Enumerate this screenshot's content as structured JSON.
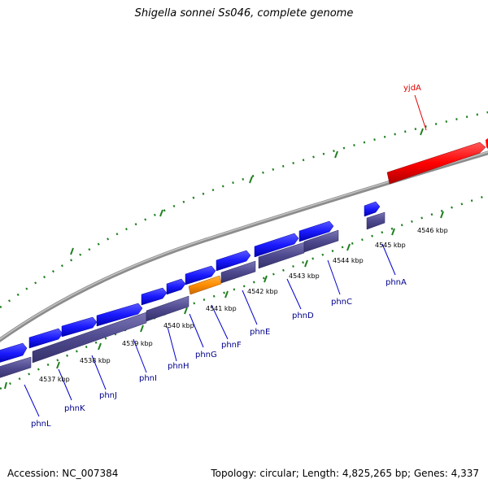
{
  "title": "Shigella sonnei Ss046, complete genome",
  "accession": "Accession: NC_007384",
  "summary": "Topology: circular; Length: 4,825,265 bp; Genes: 4,337",
  "colors": {
    "forward_gene": "#1a1aff",
    "reverse_gene": "#4f4a8f",
    "highlight_gene": "#ff8c00",
    "rna_gene": "#ff0000",
    "backbone": "#8c8c8c",
    "tick": "#1e7f1e",
    "label": "#00008b"
  },
  "ticks": [
    {
      "label": "4537 kbp"
    },
    {
      "label": "4538 kbp"
    },
    {
      "label": "4539 kbp"
    },
    {
      "label": "4540 kbp"
    },
    {
      "label": "4541 kbp"
    },
    {
      "label": "4542 kbp"
    },
    {
      "label": "4543 kbp"
    },
    {
      "label": "4544 kbp"
    },
    {
      "label": "4545 kbp"
    },
    {
      "label": "4546 kbp"
    }
  ],
  "genes": [
    {
      "name": "phnL"
    },
    {
      "name": "phnK"
    },
    {
      "name": "phnJ"
    },
    {
      "name": "phnI"
    },
    {
      "name": "phnH"
    },
    {
      "name": "phnG"
    },
    {
      "name": "phnF"
    },
    {
      "name": "phnE"
    },
    {
      "name": "phnD"
    },
    {
      "name": "phnC"
    },
    {
      "name": "phnA"
    },
    {
      "name": "yjdA"
    }
  ]
}
